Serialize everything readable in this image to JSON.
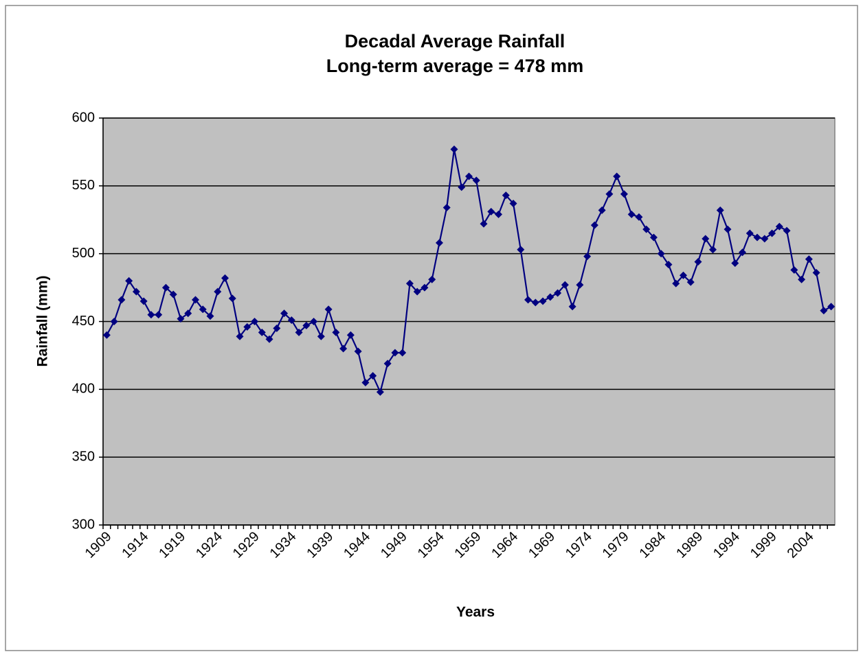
{
  "chart_data": {
    "type": "line",
    "title": "Decadal Average Rainfall",
    "subtitle": "Long-term average = 478 mm",
    "x_label": "Years",
    "y_label": "Rainfall (mm)",
    "categories": [
      "1909",
      null,
      null,
      null,
      null,
      "1914",
      null,
      null,
      null,
      null,
      "1919",
      null,
      null,
      null,
      null,
      "1924",
      null,
      null,
      null,
      null,
      "1929",
      null,
      null,
      null,
      null,
      "1934",
      null,
      null,
      null,
      null,
      "1939",
      null,
      null,
      null,
      null,
      "1944",
      null,
      null,
      null,
      null,
      "1949",
      null,
      null,
      null,
      null,
      "1954",
      null,
      null,
      null,
      null,
      "1959",
      null,
      null,
      null,
      null,
      "1964",
      null,
      null,
      null,
      null,
      "1969",
      null,
      null,
      null,
      null,
      "1974",
      null,
      null,
      null,
      null,
      "1979",
      null,
      null,
      null,
      null,
      "1984",
      null,
      null,
      null,
      null,
      "1989",
      null,
      null,
      null,
      null,
      "1994",
      null,
      null,
      null,
      null,
      "1999",
      null,
      null,
      null,
      null,
      "2004",
      null,
      null,
      null
    ],
    "values": [
      440,
      450,
      466,
      480,
      472,
      465,
      455,
      455,
      475,
      470,
      452,
      456,
      466,
      459,
      454,
      472,
      482,
      467,
      439,
      446,
      450,
      442,
      437,
      445,
      456,
      451,
      442,
      447,
      450,
      439,
      459,
      442,
      430,
      440,
      428,
      405,
      410,
      398,
      419,
      427,
      427,
      478,
      472,
      475,
      481,
      508,
      534,
      577,
      549,
      557,
      554,
      522,
      531,
      529,
      543,
      537,
      503,
      466,
      464,
      465,
      468,
      471,
      477,
      461,
      477,
      498,
      521,
      532,
      544,
      557,
      544,
      529,
      527,
      518,
      512,
      500,
      492,
      478,
      484,
      479,
      494,
      511,
      503,
      532,
      518,
      493,
      501,
      515,
      512,
      511,
      515,
      520,
      517,
      488,
      481,
      496,
      486,
      458,
      461
    ],
    "color": "#000080",
    "plot_background": "#c0c0c0",
    "ylim": [
      300,
      600
    ],
    "yticks": [
      300,
      350,
      400,
      450,
      500,
      550,
      600
    ],
    "grid": true
  }
}
